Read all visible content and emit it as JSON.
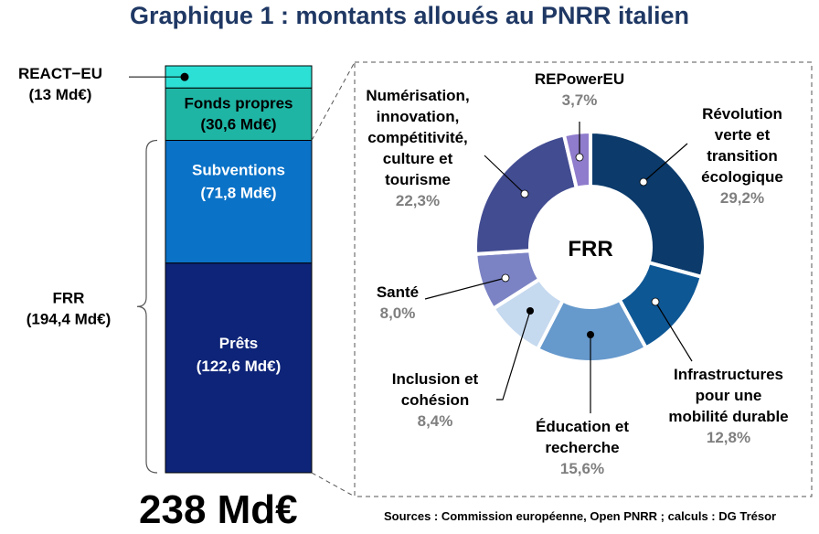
{
  "title": "Graphique 1 : montants alloués au PNRR italien",
  "total": "238 Md€",
  "sources": "Sources : Commission européenne, Open PNRR ; calculs : DG Trésor",
  "colors": {
    "title": "#1f3864",
    "react_eu": "#2de0d6",
    "fonds_propres": "#1fb5a4",
    "subventions": "#0a72c7",
    "prets": "#0e2478",
    "pct_text": "#7f7f7f"
  },
  "chart_data": [
    {
      "type": "bar",
      "stacked": true,
      "unit": "Md€",
      "segments": [
        {
          "key": "react",
          "name": "REACT−EU",
          "value": 13,
          "value_label": "(13 Md€)",
          "color": "#2de0d6"
        },
        {
          "key": "fonds",
          "name": "Fonds propres",
          "value": 30.6,
          "value_label": "(30,6 Md€)",
          "color": "#1fb5a4"
        },
        {
          "key": "subv",
          "name": "Subventions",
          "value": 71.8,
          "value_label": "(71,8 Md€)",
          "color": "#0a72c7"
        },
        {
          "key": "prets",
          "name": "Prêts",
          "value": 122.6,
          "value_label": "(122,6 Md€)",
          "color": "#0e2478"
        }
      ],
      "group_brace": {
        "name": "FRR",
        "value_label": "(194,4 Md€)",
        "value": 194.4
      }
    },
    {
      "type": "pie",
      "donut": true,
      "center_label": "FRR",
      "slices": [
        {
          "key": "rev",
          "label_lines": [
            "Révolution",
            "verte et",
            "transition",
            "écologique"
          ],
          "pct_label": "29,2%",
          "value": 29.2,
          "color": "#0b3a6b"
        },
        {
          "key": "infra",
          "label_lines": [
            "Infrastructures",
            "pour une",
            "mobilité durable"
          ],
          "pct_label": "12,8%",
          "value": 12.8,
          "color": "#0e5795"
        },
        {
          "key": "educ",
          "label_lines": [
            "Éducation et",
            "recherche"
          ],
          "pct_label": "15,6%",
          "value": 15.6,
          "color": "#6699cc"
        },
        {
          "key": "incl",
          "label_lines": [
            "Inclusion et",
            "cohésion"
          ],
          "pct_label": "8,4%",
          "value": 8.4,
          "color": "#c5d9ef"
        },
        {
          "key": "sante",
          "label_lines": [
            "Santé"
          ],
          "pct_label": "8,0%",
          "value": 8.0,
          "color": "#7b83c4"
        },
        {
          "key": "num",
          "label_lines": [
            "Numérisation,",
            "innovation,",
            "compétitivité,",
            "culture et",
            "tourisme"
          ],
          "pct_label": "22,3%",
          "value": 22.3,
          "color": "#424c91"
        },
        {
          "key": "rep",
          "label_lines": [
            "REPowerEU"
          ],
          "pct_label": "3,7%",
          "value": 3.7,
          "color": "#8f7ccc"
        }
      ]
    }
  ]
}
